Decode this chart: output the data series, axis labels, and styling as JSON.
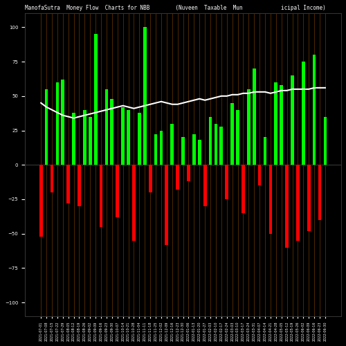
{
  "title": "ManofaSutra  Money Flow  Charts for NBB        (Nuveen  Taxable  Mun            icipal Income)",
  "bg_color": "#000000",
  "bar_color_up": "#00ff00",
  "bar_color_down": "#ff0000",
  "grid_color": "#8B4500",
  "line_color": "#ffffff",
  "bars": [
    {
      "label": "2021-07-01",
      "val": -52,
      "color": "red"
    },
    {
      "label": "2021-07-08",
      "val": 55,
      "color": "green"
    },
    {
      "label": "2021-07-15",
      "val": -20,
      "color": "red"
    },
    {
      "label": "2021-07-22",
      "val": 60,
      "color": "green"
    },
    {
      "label": "2021-07-29",
      "val": 62,
      "color": "green"
    },
    {
      "label": "2021-08-05",
      "val": -28,
      "color": "red"
    },
    {
      "label": "2021-08-12",
      "val": 38,
      "color": "green"
    },
    {
      "label": "2021-08-19",
      "val": -30,
      "color": "red"
    },
    {
      "label": "2021-08-26",
      "val": 40,
      "color": "green"
    },
    {
      "label": "2021-09-02",
      "val": 35,
      "color": "green"
    },
    {
      "label": "2021-09-09",
      "val": 95,
      "color": "green"
    },
    {
      "label": "2021-09-16",
      "val": -45,
      "color": "red"
    },
    {
      "label": "2021-09-23",
      "val": 55,
      "color": "green"
    },
    {
      "label": "2021-09-30",
      "val": 48,
      "color": "green"
    },
    {
      "label": "2021-10-07",
      "val": -38,
      "color": "red"
    },
    {
      "label": "2021-10-14",
      "val": 42,
      "color": "green"
    },
    {
      "label": "2021-10-21",
      "val": 40,
      "color": "green"
    },
    {
      "label": "2021-10-28",
      "val": -55,
      "color": "red"
    },
    {
      "label": "2021-11-04",
      "val": 38,
      "color": "green"
    },
    {
      "label": "2021-11-11",
      "val": 100,
      "color": "green"
    },
    {
      "label": "2021-11-18",
      "val": -20,
      "color": "red"
    },
    {
      "label": "2021-11-25",
      "val": 22,
      "color": "green"
    },
    {
      "label": "2021-12-02",
      "val": 25,
      "color": "green"
    },
    {
      "label": "2021-12-09",
      "val": -58,
      "color": "red"
    },
    {
      "label": "2021-12-16",
      "val": 30,
      "color": "green"
    },
    {
      "label": "2021-12-23",
      "val": -18,
      "color": "red"
    },
    {
      "label": "2021-12-30",
      "val": 20,
      "color": "green"
    },
    {
      "label": "2022-01-06",
      "val": -12,
      "color": "red"
    },
    {
      "label": "2022-01-13",
      "val": 22,
      "color": "green"
    },
    {
      "label": "2022-01-20",
      "val": 18,
      "color": "green"
    },
    {
      "label": "2022-01-27",
      "val": -30,
      "color": "red"
    },
    {
      "label": "2022-02-03",
      "val": 35,
      "color": "green"
    },
    {
      "label": "2022-02-10",
      "val": 30,
      "color": "green"
    },
    {
      "label": "2022-02-17",
      "val": 28,
      "color": "green"
    },
    {
      "label": "2022-02-24",
      "val": -25,
      "color": "red"
    },
    {
      "label": "2022-03-03",
      "val": 45,
      "color": "green"
    },
    {
      "label": "2022-03-10",
      "val": 40,
      "color": "green"
    },
    {
      "label": "2022-03-17",
      "val": -35,
      "color": "red"
    },
    {
      "label": "2022-03-24",
      "val": 55,
      "color": "green"
    },
    {
      "label": "2022-03-31",
      "val": 70,
      "color": "green"
    },
    {
      "label": "2022-04-07",
      "val": -15,
      "color": "red"
    },
    {
      "label": "2022-04-14",
      "val": 20,
      "color": "green"
    },
    {
      "label": "2022-04-21",
      "val": -50,
      "color": "red"
    },
    {
      "label": "2022-04-28",
      "val": 60,
      "color": "green"
    },
    {
      "label": "2022-05-05",
      "val": 58,
      "color": "green"
    },
    {
      "label": "2022-05-12",
      "val": -60,
      "color": "red"
    },
    {
      "label": "2022-05-19",
      "val": 65,
      "color": "green"
    },
    {
      "label": "2022-05-26",
      "val": -55,
      "color": "red"
    },
    {
      "label": "2022-06-02",
      "val": 75,
      "color": "green"
    },
    {
      "label": "2022-06-09",
      "val": -48,
      "color": "red"
    },
    {
      "label": "2022-06-16",
      "val": 80,
      "color": "green"
    },
    {
      "label": "2022-06-23",
      "val": -40,
      "color": "red"
    },
    {
      "label": "2022-06-30",
      "val": 35,
      "color": "green"
    }
  ],
  "ylim": [
    -110,
    110
  ],
  "line_values": [
    45,
    42,
    40,
    38,
    36,
    35,
    34,
    35,
    36,
    37,
    38,
    39,
    40,
    41,
    42,
    43,
    42,
    41,
    42,
    43,
    44,
    45,
    46,
    45,
    44,
    44,
    45,
    46,
    47,
    48,
    47,
    48,
    49,
    50,
    50,
    51,
    51,
    52,
    52,
    53,
    53,
    53,
    52,
    53,
    54,
    54,
    55,
    55,
    55,
    55,
    56,
    56,
    56
  ]
}
